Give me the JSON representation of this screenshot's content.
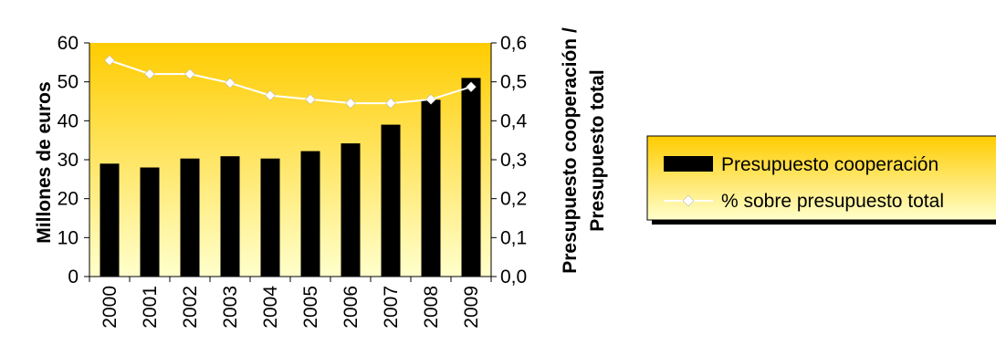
{
  "chart_data": {
    "type": "bar",
    "categories": [
      "2000",
      "2001",
      "2002",
      "2003",
      "2004",
      "2005",
      "2006",
      "2007",
      "2008",
      "2009"
    ],
    "series": [
      {
        "name": "Presupuesto cooperación",
        "type": "bar",
        "axis": "left",
        "values": [
          29,
          28,
          30.3,
          30.9,
          30.3,
          32.2,
          34.2,
          39,
          45.4,
          51
        ],
        "color": "#000000"
      },
      {
        "name": "% sobre presupuesto total",
        "type": "line",
        "axis": "right",
        "values": [
          0.555,
          0.52,
          0.52,
          0.497,
          0.465,
          0.455,
          0.445,
          0.445,
          0.455,
          0.487
        ],
        "color": "#ffffff",
        "marker": "diamond"
      }
    ],
    "ylabel": "Millones de euros",
    "ylabel_right_lines": [
      "Presupuesto cooperación /",
      "Presupuesto total"
    ],
    "ylim": [
      0,
      60
    ],
    "ylim_right": [
      0,
      0.6
    ],
    "yticks": [
      "0",
      "10",
      "20",
      "30",
      "40",
      "50",
      "60"
    ],
    "yticks_right": [
      "0,0",
      "0,1",
      "0,2",
      "0,3",
      "0,4",
      "0,5",
      "0,6"
    ],
    "grid": false,
    "legend": "right",
    "background": {
      "top": "#ffcc00",
      "bottom": "#ffffcc"
    }
  }
}
